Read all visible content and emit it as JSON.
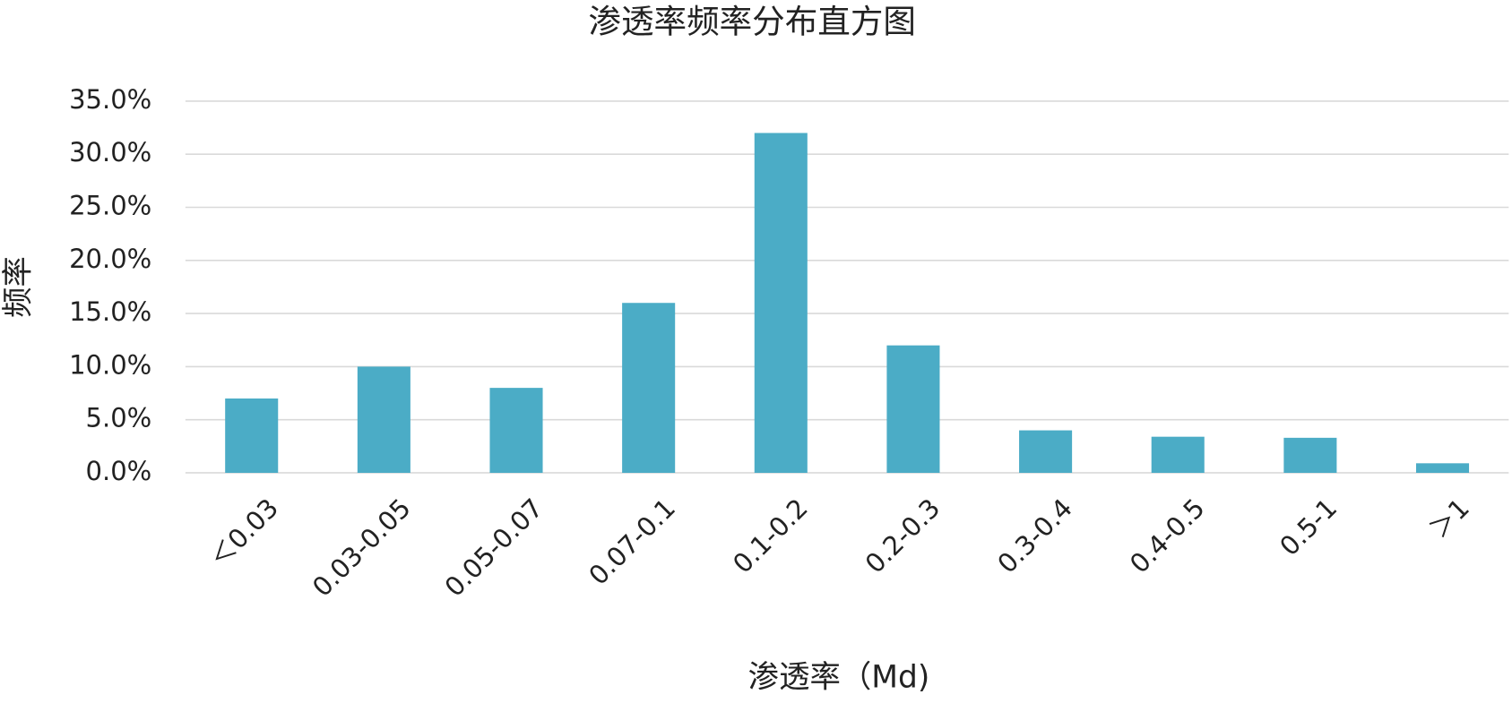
{
  "chart_data": {
    "type": "bar",
    "title": "渗透率频率分布直方图",
    "x_label": "渗透率（Md)",
    "y_label": "频率",
    "categories": [
      "＜0.03",
      "0.03-0.05",
      "0.05-0.07",
      "0.07-0.1",
      "0.1-0.2",
      "0.2-0.3",
      "0.3-0.4",
      "0.4-0.5",
      "0.5-1",
      "＞1"
    ],
    "values": [
      7.0,
      10.0,
      8.0,
      16.0,
      32.0,
      12.0,
      4.0,
      3.4,
      3.3,
      0.9
    ],
    "color": "#4bacc6",
    "ylim": [
      0,
      35
    ],
    "yticks": [
      {
        "value": 0,
        "label": "0.0%"
      },
      {
        "value": 5,
        "label": "5.0%"
      },
      {
        "value": 10,
        "label": "10.0%"
      },
      {
        "value": 15,
        "label": "15.0%"
      },
      {
        "value": 20,
        "label": "20.0%"
      },
      {
        "value": 25,
        "label": "25.0%"
      },
      {
        "value": 30,
        "label": "30.0%"
      },
      {
        "value": 35,
        "label": "35.0%"
      }
    ],
    "grid": true
  }
}
